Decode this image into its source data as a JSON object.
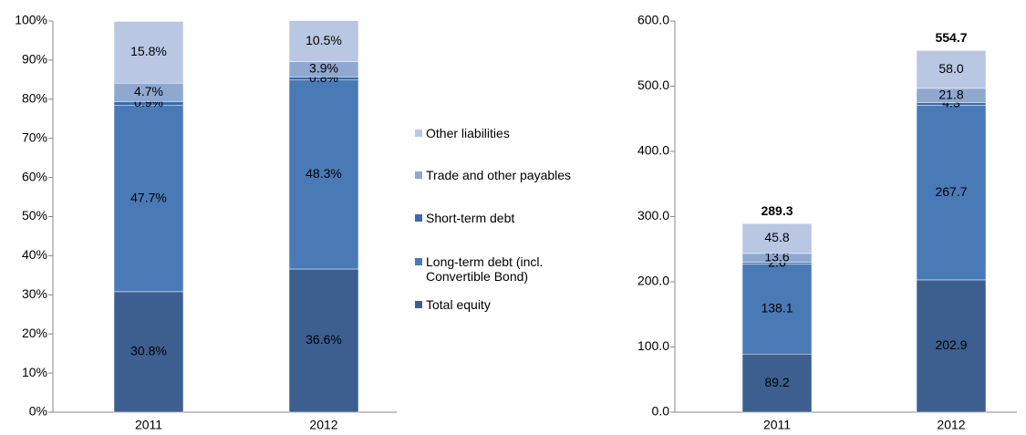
{
  "chart_data": [
    {
      "type": "stacked_bar",
      "categories": [
        "2011",
        "2012"
      ],
      "ylim": [
        0,
        100
      ],
      "yticks": [
        {
          "value": 0,
          "label": "0%"
        },
        {
          "value": 10,
          "label": "10%"
        },
        {
          "value": 20,
          "label": "20%"
        },
        {
          "value": 30,
          "label": "30%"
        },
        {
          "value": 40,
          "label": "40%"
        },
        {
          "value": 50,
          "label": "50%"
        },
        {
          "value": 60,
          "label": "60%"
        },
        {
          "value": 70,
          "label": "70%"
        },
        {
          "value": 80,
          "label": "80%"
        },
        {
          "value": 90,
          "label": "90%"
        },
        {
          "value": 100,
          "label": "100%"
        }
      ],
      "legend": "right",
      "series": [
        {
          "name": "Total equity",
          "color": "#3c5f8f",
          "values": [
            30.8,
            36.6
          ],
          "value_labels": [
            "30.8%",
            "36.6%"
          ]
        },
        {
          "name": "Long-term debt (incl. Convertible Bond)",
          "color": "#4a7ab5",
          "values": [
            47.7,
            48.3
          ],
          "value_labels": [
            "47.7%",
            "48.3%"
          ]
        },
        {
          "name": "Short-term debt",
          "color": "#3e6aa6",
          "values": [
            0.9,
            0.8
          ],
          "value_labels": [
            "0.9%",
            "0.8%"
          ]
        },
        {
          "name": "Trade and other payables",
          "color": "#8fa8d0",
          "values": [
            4.7,
            3.9
          ],
          "value_labels": [
            "4.7%",
            "3.9%"
          ]
        },
        {
          "name": "Other liabilities",
          "color": "#b9c7e3",
          "values": [
            15.8,
            10.5
          ],
          "value_labels": [
            "15.8%",
            "10.5%"
          ]
        }
      ]
    },
    {
      "type": "stacked_bar",
      "categories": [
        "2011",
        "2012"
      ],
      "ylim": [
        0,
        600
      ],
      "yticks": [
        {
          "value": 0,
          "label": "0.0"
        },
        {
          "value": 100,
          "label": "100.0"
        },
        {
          "value": 200,
          "label": "200.0"
        },
        {
          "value": 300,
          "label": "300.0"
        },
        {
          "value": 400,
          "label": "400.0"
        },
        {
          "value": 500,
          "label": "500.0"
        },
        {
          "value": 600,
          "label": "600.0"
        }
      ],
      "totals": [
        289.3,
        554.7
      ],
      "series": [
        {
          "color": "#3c5f8f",
          "values": [
            89.2,
            202.9
          ],
          "value_labels": [
            "89.2",
            "202.9"
          ]
        },
        {
          "color": "#4a7ab5",
          "values": [
            138.1,
            267.7
          ],
          "value_labels": [
            "138.1",
            "267.7"
          ]
        },
        {
          "color": "#3e6aa6",
          "values": [
            2.6,
            4.3
          ],
          "value_labels": [
            "2.6",
            "4.3"
          ]
        },
        {
          "color": "#8fa8d0",
          "values": [
            13.6,
            21.8
          ],
          "value_labels": [
            "13.6",
            "21.8"
          ]
        },
        {
          "color": "#b9c7e3",
          "values": [
            45.8,
            58.0
          ],
          "value_labels": [
            "45.8",
            "58.0"
          ]
        }
      ]
    }
  ]
}
